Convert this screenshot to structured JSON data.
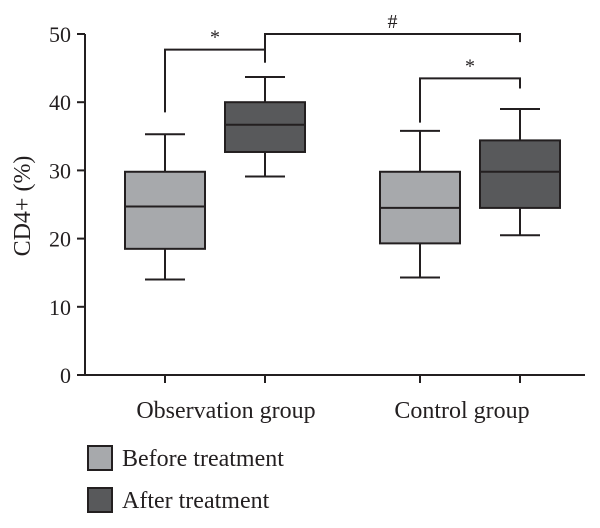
{
  "chart_data": {
    "type": "boxplot",
    "ylabel": "CD4+ (%)",
    "ylim": [
      0,
      50
    ],
    "yticks": [
      0,
      10,
      20,
      30,
      40,
      50
    ],
    "categories": [
      "Observation group",
      "Control group"
    ],
    "series": [
      {
        "name": "Before treatment",
        "color": "#a7a9ac",
        "boxes": [
          {
            "min": 14.0,
            "q1": 18.5,
            "median": 24.7,
            "q3": 29.8,
            "max": 35.3
          },
          {
            "min": 14.3,
            "q1": 19.3,
            "median": 24.5,
            "q3": 29.8,
            "max": 35.8
          }
        ]
      },
      {
        "name": "After treatment",
        "color": "#58595b",
        "boxes": [
          {
            "min": 29.1,
            "q1": 32.7,
            "median": 36.7,
            "q3": 40.0,
            "max": 43.7
          },
          {
            "min": 20.5,
            "q1": 24.5,
            "median": 29.8,
            "q3": 34.4,
            "max": 39.0
          }
        ]
      }
    ],
    "annotations": [
      {
        "label": "*",
        "from": [
          0,
          0
        ],
        "to": [
          0,
          1
        ],
        "top": 47.7,
        "left_drop": 38.5,
        "right_drop": 45.8
      },
      {
        "label": "#",
        "from": [
          0,
          1
        ],
        "to": [
          1,
          1
        ],
        "top": 50.0,
        "left_drop": 45.8,
        "right_drop": 48.8
      },
      {
        "label": "*",
        "from": [
          1,
          0
        ],
        "to": [
          1,
          1
        ],
        "top": 43.5,
        "left_drop": 37.0,
        "right_drop": 42.0
      }
    ],
    "grid": false,
    "legend": "bottom-left"
  }
}
